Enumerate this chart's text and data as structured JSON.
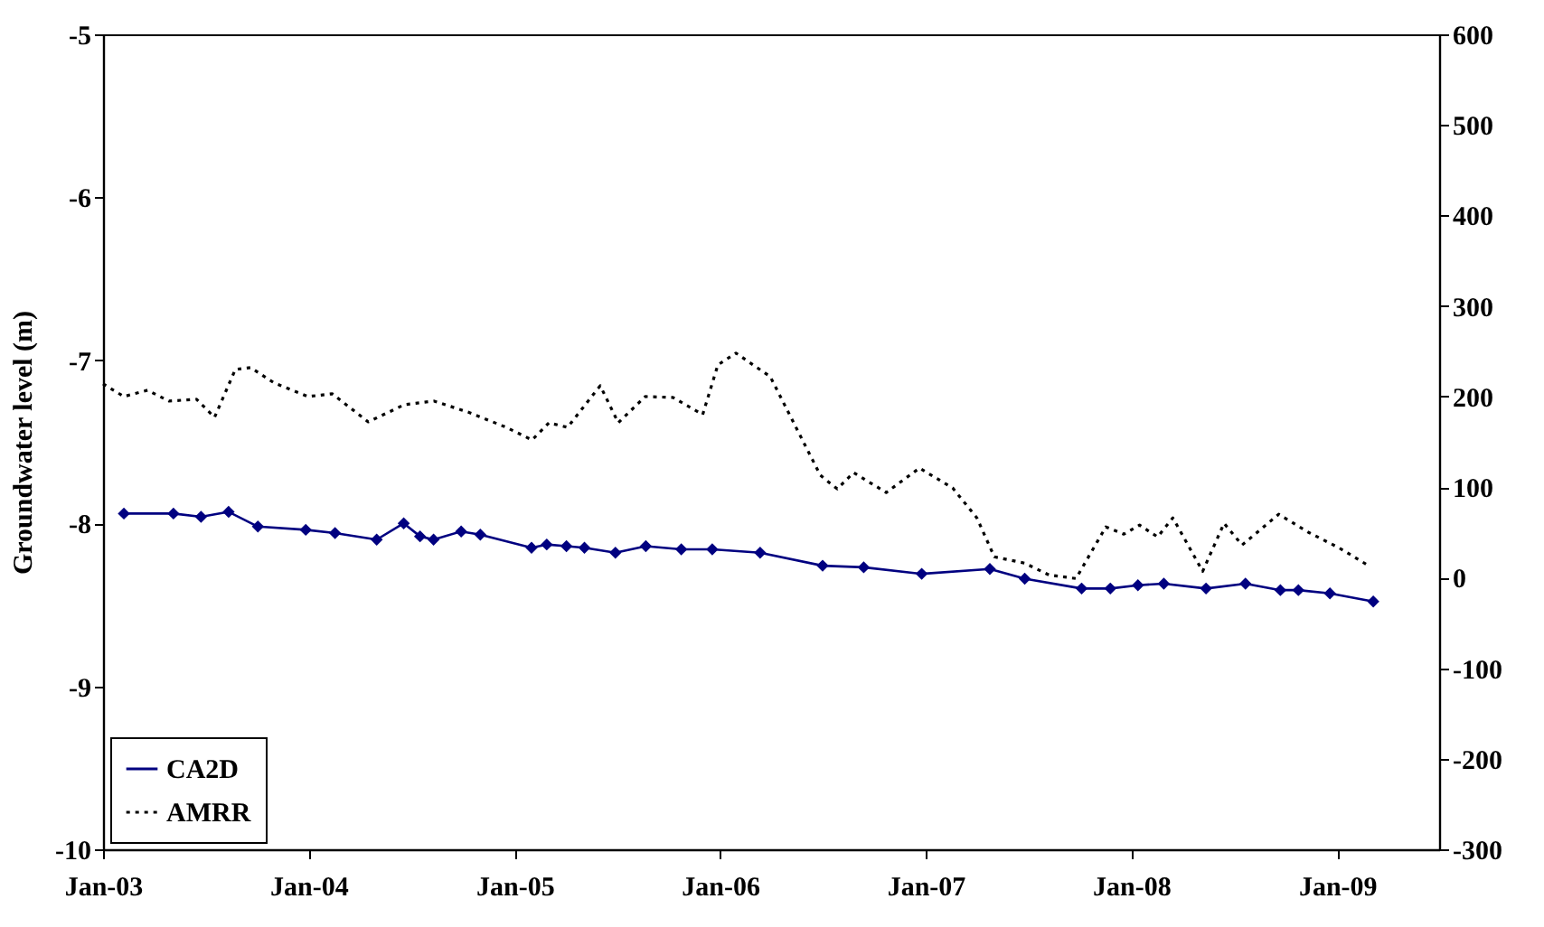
{
  "chart_data": {
    "type": "line",
    "ylabel": "Groundwater level (m)",
    "legend": "bottom left",
    "grid": false,
    "xlim": [
      "2003-01-01",
      "2009-07-01"
    ],
    "xticks": [
      {
        "value": "2003-01-01",
        "label": "Jan-03"
      },
      {
        "value": "2004-01-01",
        "label": "Jan-04"
      },
      {
        "value": "2005-01-01",
        "label": "Jan-05"
      },
      {
        "value": "2006-01-01",
        "label": "Jan-06"
      },
      {
        "value": "2007-01-01",
        "label": "Jan-07"
      },
      {
        "value": "2008-01-01",
        "label": "Jan-08"
      },
      {
        "value": "2009-01-01",
        "label": "Jan-09"
      }
    ],
    "ylim": [
      -10,
      -5
    ],
    "yticks": [
      -10,
      -9,
      -8,
      -7,
      -6,
      -5
    ],
    "y2lim": [
      -300,
      600
    ],
    "y2ticks": [
      -300,
      -200,
      -100,
      0,
      100,
      200,
      300,
      400,
      500,
      600
    ],
    "series": [
      {
        "name": "CA2D",
        "color": "#000080",
        "marker": "diamond",
        "line_style": "solid",
        "x": [
          "2003-02-07",
          "2003-05-06",
          "2003-06-24",
          "2003-08-12",
          "2003-10-03",
          "2003-12-27",
          "2004-02-17",
          "2004-05-01",
          "2004-06-18",
          "2004-07-17",
          "2004-08-10",
          "2004-09-28",
          "2004-11-01",
          "2005-01-31",
          "2005-02-27",
          "2005-04-03",
          "2005-05-05",
          "2005-06-29",
          "2005-08-22",
          "2005-10-24",
          "2005-12-18",
          "2006-03-13",
          "2006-07-02",
          "2006-09-13",
          "2006-12-25",
          "2007-04-25",
          "2007-06-26",
          "2007-10-05",
          "2007-11-25",
          "2008-01-13",
          "2008-02-28",
          "2008-05-13",
          "2008-07-22",
          "2008-09-22",
          "2008-10-24",
          "2008-12-19",
          "2009-03-06"
        ],
        "values": [
          -7.94,
          -7.94,
          -7.96,
          -7.93,
          -8.02,
          -8.04,
          -8.06,
          -8.1,
          -8.0,
          -8.08,
          -8.1,
          -8.05,
          -8.07,
          -8.15,
          -8.13,
          -8.14,
          -8.15,
          -8.18,
          -8.14,
          -8.16,
          -8.16,
          -8.18,
          -8.26,
          -8.27,
          -8.31,
          -8.28,
          -8.34,
          -8.4,
          -8.4,
          -8.38,
          -8.37,
          -8.4,
          -8.37,
          -8.41,
          -8.41,
          -8.43,
          -8.48
        ]
      },
      {
        "name": "AMRR",
        "color": "#000000",
        "marker": "none",
        "line_style": "dotted",
        "axis": "y2",
        "x": [
          "2003-01-01",
          "2003-02-07",
          "2003-03-21",
          "2003-04-28",
          "2003-06-16",
          "2003-07-18",
          "2003-08-24",
          "2003-09-20",
          "2003-11-01",
          "2003-12-31",
          "2004-02-12",
          "2004-04-16",
          "2004-06-19",
          "2004-08-11",
          "2004-10-14",
          "2004-12-17",
          "2005-02-01",
          "2005-03-03",
          "2005-04-05",
          "2005-06-02",
          "2005-07-04",
          "2005-08-21",
          "2005-10-09",
          "2005-12-01",
          "2005-12-28",
          "2006-01-29",
          "2006-03-31",
          "2006-06-28",
          "2006-07-28",
          "2006-08-26",
          "2006-10-23",
          "2006-12-21",
          "2007-02-18",
          "2007-04-02",
          "2007-05-03",
          "2007-06-26",
          "2007-08-08",
          "2007-09-25",
          "2007-11-17",
          "2007-12-19",
          "2008-01-16",
          "2008-02-17",
          "2008-03-15",
          "2008-05-07",
          "2008-06-14",
          "2008-07-16",
          "2008-09-19",
          "2008-11-11",
          "2009-01-04",
          "2009-02-21"
        ],
        "values": [
          214,
          200,
          207,
          195,
          197,
          177,
          230,
          232,
          215,
          200,
          203,
          172,
          191,
          195,
          182,
          166,
          152,
          171,
          166,
          212,
          171,
          200,
          199,
          180,
          235,
          248,
          222,
          113,
          98,
          116,
          94,
          121,
          99,
          66,
          23,
          16,
          3,
          -1,
          56,
          48,
          58,
          45,
          66,
          7,
          60,
          36,
          70,
          50,
          33,
          15
        ]
      }
    ]
  }
}
